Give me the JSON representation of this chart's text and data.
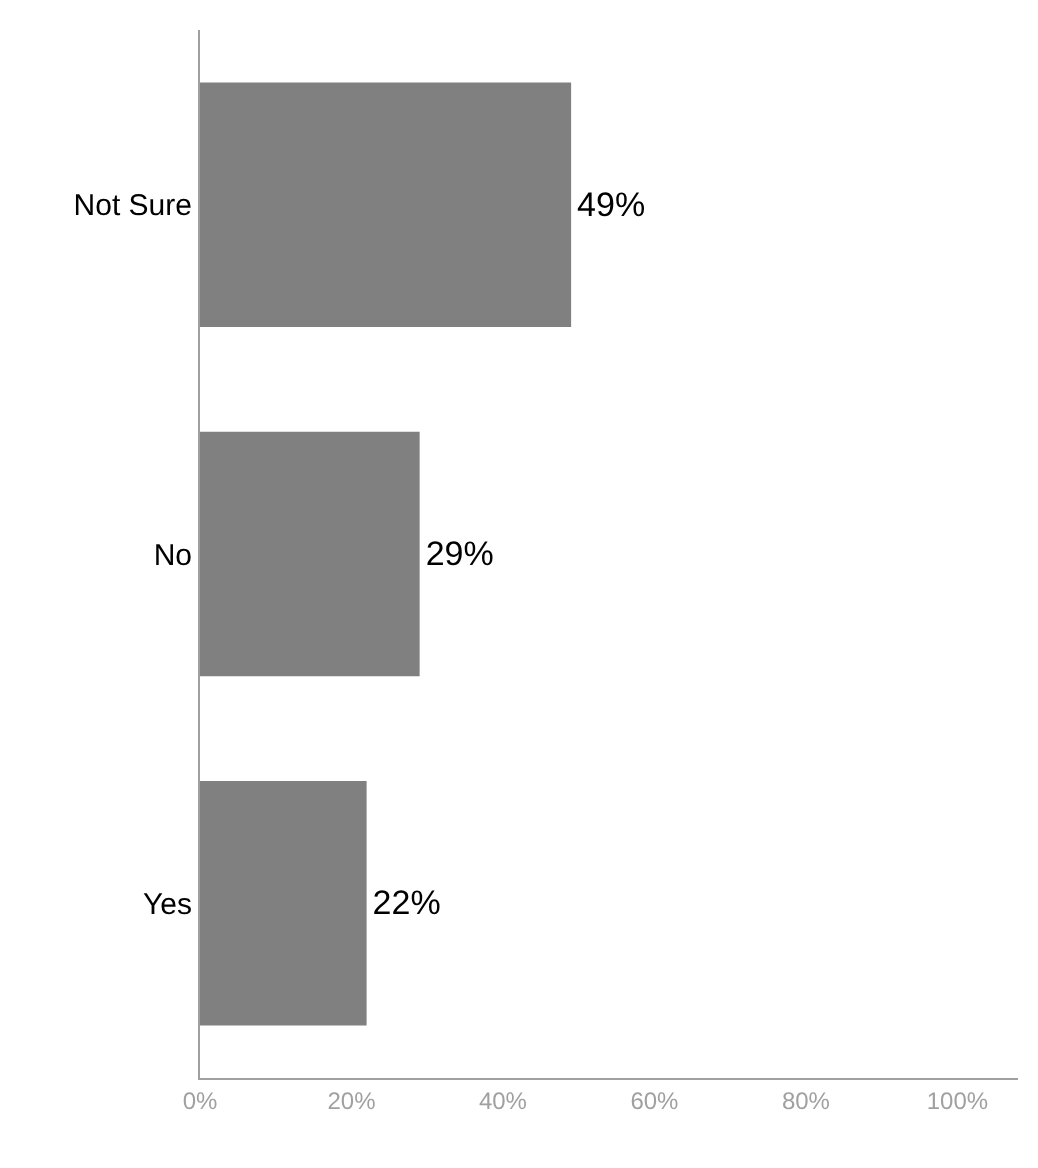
{
  "chart_data": {
    "type": "bar",
    "orientation": "horizontal",
    "categories": [
      "Not Sure",
      "No",
      "Yes"
    ],
    "values": [
      49,
      29,
      22
    ],
    "color": "#808080",
    "xlim": [
      0,
      108
    ],
    "xticks": [
      {
        "value": 0,
        "label": "0%"
      },
      {
        "value": 20,
        "label": "20%"
      },
      {
        "value": 40,
        "label": "40%"
      },
      {
        "value": 60,
        "label": "60%"
      },
      {
        "value": 80,
        "label": "80%"
      },
      {
        "value": 100,
        "label": "100%"
      }
    ],
    "value_labels": [
      "49%",
      "29%",
      "22%"
    ]
  }
}
